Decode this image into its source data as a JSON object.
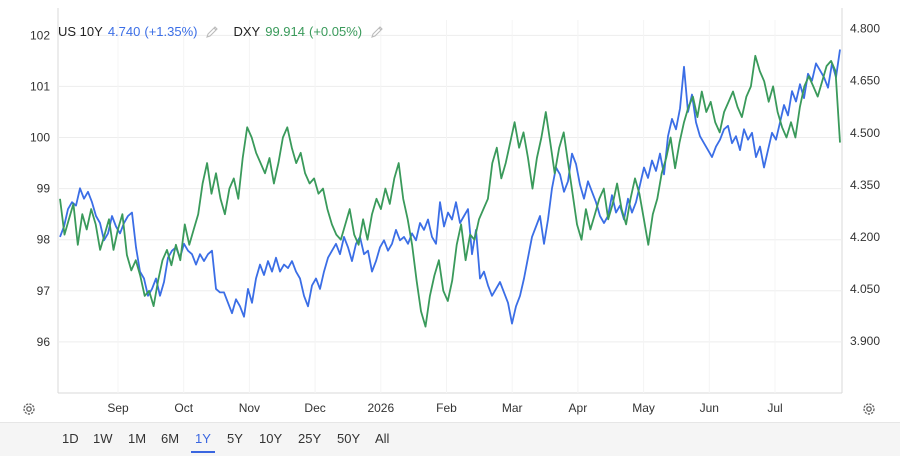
{
  "legend": {
    "series1": {
      "symbol": "US 10Y",
      "value": "4.740",
      "change": "(+1.35%)",
      "color": "#3b6ee6"
    },
    "series2": {
      "symbol": "DXY",
      "value": "99.914",
      "change": "(+0.05%)",
      "color": "#3a9a5b"
    }
  },
  "range_buttons": [
    "1D",
    "1W",
    "1M",
    "6M",
    "1Y",
    "5Y",
    "10Y",
    "25Y",
    "50Y",
    "All"
  ],
  "active_range": "1Y",
  "chart_data": {
    "type": "line",
    "x_tick_labels": [
      "Sep",
      "Oct",
      "Nov",
      "Dec",
      "2026",
      "Feb",
      "Mar",
      "Apr",
      "May",
      "Jun",
      "Jul"
    ],
    "left_axis": {
      "ticks": [
        102,
        101,
        100,
        99,
        98,
        97,
        96
      ],
      "ylim": [
        95,
        102.3
      ]
    },
    "right_axis": {
      "ticks": [
        "4.800",
        "4.650",
        "4.500",
        "4.350",
        "4.200",
        "4.050",
        "3.900"
      ],
      "ylim": [
        3.75,
        4.825
      ]
    },
    "grid": true,
    "series": [
      {
        "name": "US 10Y",
        "axis": "right",
        "color": "#3b6ee6",
        "values": [
          4.2,
          4.23,
          4.28,
          4.3,
          4.29,
          4.34,
          4.31,
          4.33,
          4.3,
          4.26,
          4.24,
          4.19,
          4.21,
          4.26,
          4.23,
          4.21,
          4.24,
          4.26,
          4.27,
          4.17,
          4.1,
          4.08,
          4.03,
          4.05,
          4.08,
          4.03,
          4.07,
          4.14,
          4.16,
          4.17,
          4.14,
          4.18,
          4.16,
          4.15,
          4.12,
          4.15,
          4.13,
          4.15,
          4.16,
          4.05,
          4.04,
          4.04,
          4.01,
          3.98,
          4.02,
          4.0,
          3.97,
          4.05,
          4.01,
          4.08,
          4.12,
          4.09,
          4.13,
          4.1,
          4.14,
          4.1,
          4.12,
          4.11,
          4.13,
          4.1,
          4.08,
          4.03,
          4.0,
          4.06,
          4.08,
          4.05,
          4.1,
          4.14,
          4.16,
          4.18,
          4.15,
          4.2,
          4.17,
          4.13,
          4.18,
          4.2,
          4.15,
          4.16,
          4.1,
          4.13,
          4.17,
          4.19,
          4.16,
          4.18,
          4.22,
          4.19,
          4.2,
          4.18,
          4.21,
          4.19,
          4.24,
          4.22,
          4.25,
          4.2,
          4.18,
          4.3,
          4.23,
          4.27,
          4.25,
          4.3,
          4.24,
          4.26,
          4.28,
          4.15,
          4.22,
          4.08,
          4.1,
          4.06,
          4.03,
          4.05,
          4.07,
          4.04,
          4.01,
          3.95,
          4.0,
          4.03,
          4.08,
          4.14,
          4.2,
          4.23,
          4.26,
          4.18,
          4.25,
          4.34,
          4.4,
          4.38,
          4.33,
          4.36,
          4.44,
          4.41,
          4.35,
          4.31,
          4.36,
          4.33,
          4.3,
          4.26,
          4.24,
          4.26,
          4.32,
          4.27,
          4.29,
          4.25,
          4.31,
          4.27,
          4.3,
          4.35,
          4.4,
          4.37,
          4.42,
          4.39,
          4.44,
          4.38,
          4.49,
          4.54,
          4.51,
          4.57,
          4.69,
          4.56,
          4.61,
          4.53,
          4.49,
          4.47,
          4.45,
          4.43,
          4.46,
          4.48,
          4.51,
          4.52,
          4.47,
          4.49,
          4.45,
          4.51,
          4.48,
          4.5,
          4.43,
          4.46,
          4.4,
          4.45,
          4.5,
          4.48,
          4.53,
          4.58,
          4.55,
          4.62,
          4.59,
          4.64,
          4.6,
          4.67,
          4.65,
          4.7,
          4.68,
          4.66,
          4.63,
          4.7,
          4.66,
          4.74
        ]
      },
      {
        "name": "DXY",
        "axis": "left",
        "color": "#3a9a5b",
        "values": [
          98.8,
          98.1,
          98.4,
          98.7,
          97.9,
          98.5,
          98.2,
          98.6,
          98.3,
          97.8,
          98.1,
          98.4,
          97.8,
          98.2,
          98.5,
          97.7,
          97.4,
          97.6,
          97.3,
          96.9,
          97.0,
          96.7,
          97.2,
          97.6,
          97.8,
          97.5,
          97.9,
          97.6,
          98.3,
          97.9,
          98.2,
          98.5,
          99.1,
          99.5,
          98.9,
          99.3,
          98.8,
          98.5,
          99.0,
          99.2,
          98.8,
          99.6,
          100.2,
          100.0,
          99.7,
          99.5,
          99.3,
          99.6,
          99.1,
          99.5,
          100.0,
          100.2,
          99.8,
          99.5,
          99.7,
          99.3,
          99.1,
          99.2,
          98.9,
          99.0,
          98.6,
          98.3,
          98.1,
          98.0,
          98.3,
          98.6,
          98.1,
          97.9,
          98.4,
          98.0,
          98.5,
          98.8,
          98.6,
          99.0,
          98.7,
          99.2,
          99.5,
          98.8,
          98.4,
          97.9,
          97.2,
          96.6,
          96.3,
          96.9,
          97.3,
          97.6,
          97.0,
          96.8,
          97.2,
          97.9,
          98.3,
          97.6,
          98.1,
          98.0,
          98.4,
          98.6,
          98.8,
          99.5,
          99.8,
          99.2,
          99.5,
          99.9,
          100.3,
          99.8,
          100.1,
          99.6,
          99.0,
          99.6,
          100.0,
          100.5,
          99.9,
          99.3,
          99.8,
          100.1,
          99.5,
          98.9,
          98.3,
          98.0,
          98.6,
          98.2,
          98.5,
          98.8,
          99.0,
          98.4,
          98.7,
          99.1,
          98.6,
          98.3,
          98.8,
          99.2,
          98.9,
          98.4,
          97.9,
          98.5,
          98.8,
          99.3,
          99.6,
          100.0,
          99.4,
          99.9,
          100.3,
          100.6,
          100.8,
          100.4,
          100.9,
          100.5,
          100.7,
          100.3,
          100.1,
          100.5,
          100.7,
          100.9,
          100.6,
          100.4,
          100.8,
          101.0,
          101.6,
          101.3,
          101.1,
          100.7,
          101.0,
          100.5,
          100.2,
          100.0,
          100.3,
          100.0,
          100.6,
          101.0,
          101.2,
          101.0,
          100.8,
          101.1,
          101.4,
          101.5,
          101.3,
          99.9
        ]
      }
    ]
  }
}
